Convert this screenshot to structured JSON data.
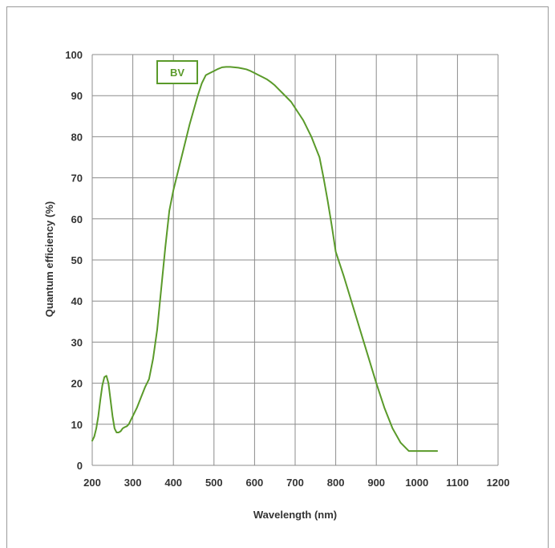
{
  "chart_data": {
    "type": "line",
    "xlabel": "Wavelength (nm)",
    "ylabel": "Quantum efficiency (%)",
    "xlim": [
      200,
      1200
    ],
    "ylim": [
      0,
      100
    ],
    "x_ticks": [
      200,
      300,
      400,
      500,
      600,
      700,
      800,
      900,
      1000,
      1100,
      1200
    ],
    "y_ticks": [
      0,
      10,
      20,
      30,
      40,
      50,
      60,
      70,
      80,
      90,
      100
    ],
    "grid": true,
    "legend": "top-left",
    "series": [
      {
        "name": "BV",
        "color": "#5a9a2a",
        "x": [
          200,
          205,
          210,
          215,
          220,
          225,
          230,
          235,
          240,
          245,
          250,
          255,
          260,
          265,
          270,
          275,
          280,
          285,
          290,
          295,
          300,
          310,
          320,
          330,
          340,
          350,
          360,
          370,
          380,
          390,
          400,
          410,
          420,
          430,
          440,
          450,
          460,
          470,
          480,
          490,
          500,
          510,
          520,
          530,
          540,
          550,
          560,
          570,
          580,
          590,
          600,
          610,
          620,
          630,
          640,
          650,
          660,
          670,
          680,
          690,
          700,
          710,
          720,
          730,
          740,
          750,
          760,
          770,
          780,
          790,
          800,
          820,
          840,
          860,
          880,
          900,
          920,
          940,
          960,
          980,
          1000,
          1020,
          1040,
          1050
        ],
        "y": [
          6,
          7,
          9,
          12,
          16,
          19.5,
          21.5,
          21.8,
          20,
          16,
          12,
          9,
          8,
          8,
          8.3,
          9,
          9.3,
          9.5,
          10,
          11,
          12,
          14,
          16.5,
          19,
          21,
          26,
          33,
          43,
          53,
          62,
          67,
          71,
          75,
          79,
          83,
          86.5,
          90,
          93,
          95,
          95.5,
          96,
          96.5,
          96.9,
          97,
          97,
          96.9,
          96.8,
          96.6,
          96.4,
          96,
          95.5,
          95,
          94.5,
          94,
          93.3,
          92.5,
          91.5,
          90.5,
          89.5,
          88.5,
          87,
          85.5,
          84,
          82,
          80,
          77.5,
          75,
          70,
          64.5,
          58.5,
          52,
          46,
          39.5,
          33,
          26.5,
          20,
          14,
          9,
          5.5,
          3.5,
          3.5,
          3.5,
          3.5,
          3.5
        ]
      }
    ]
  }
}
